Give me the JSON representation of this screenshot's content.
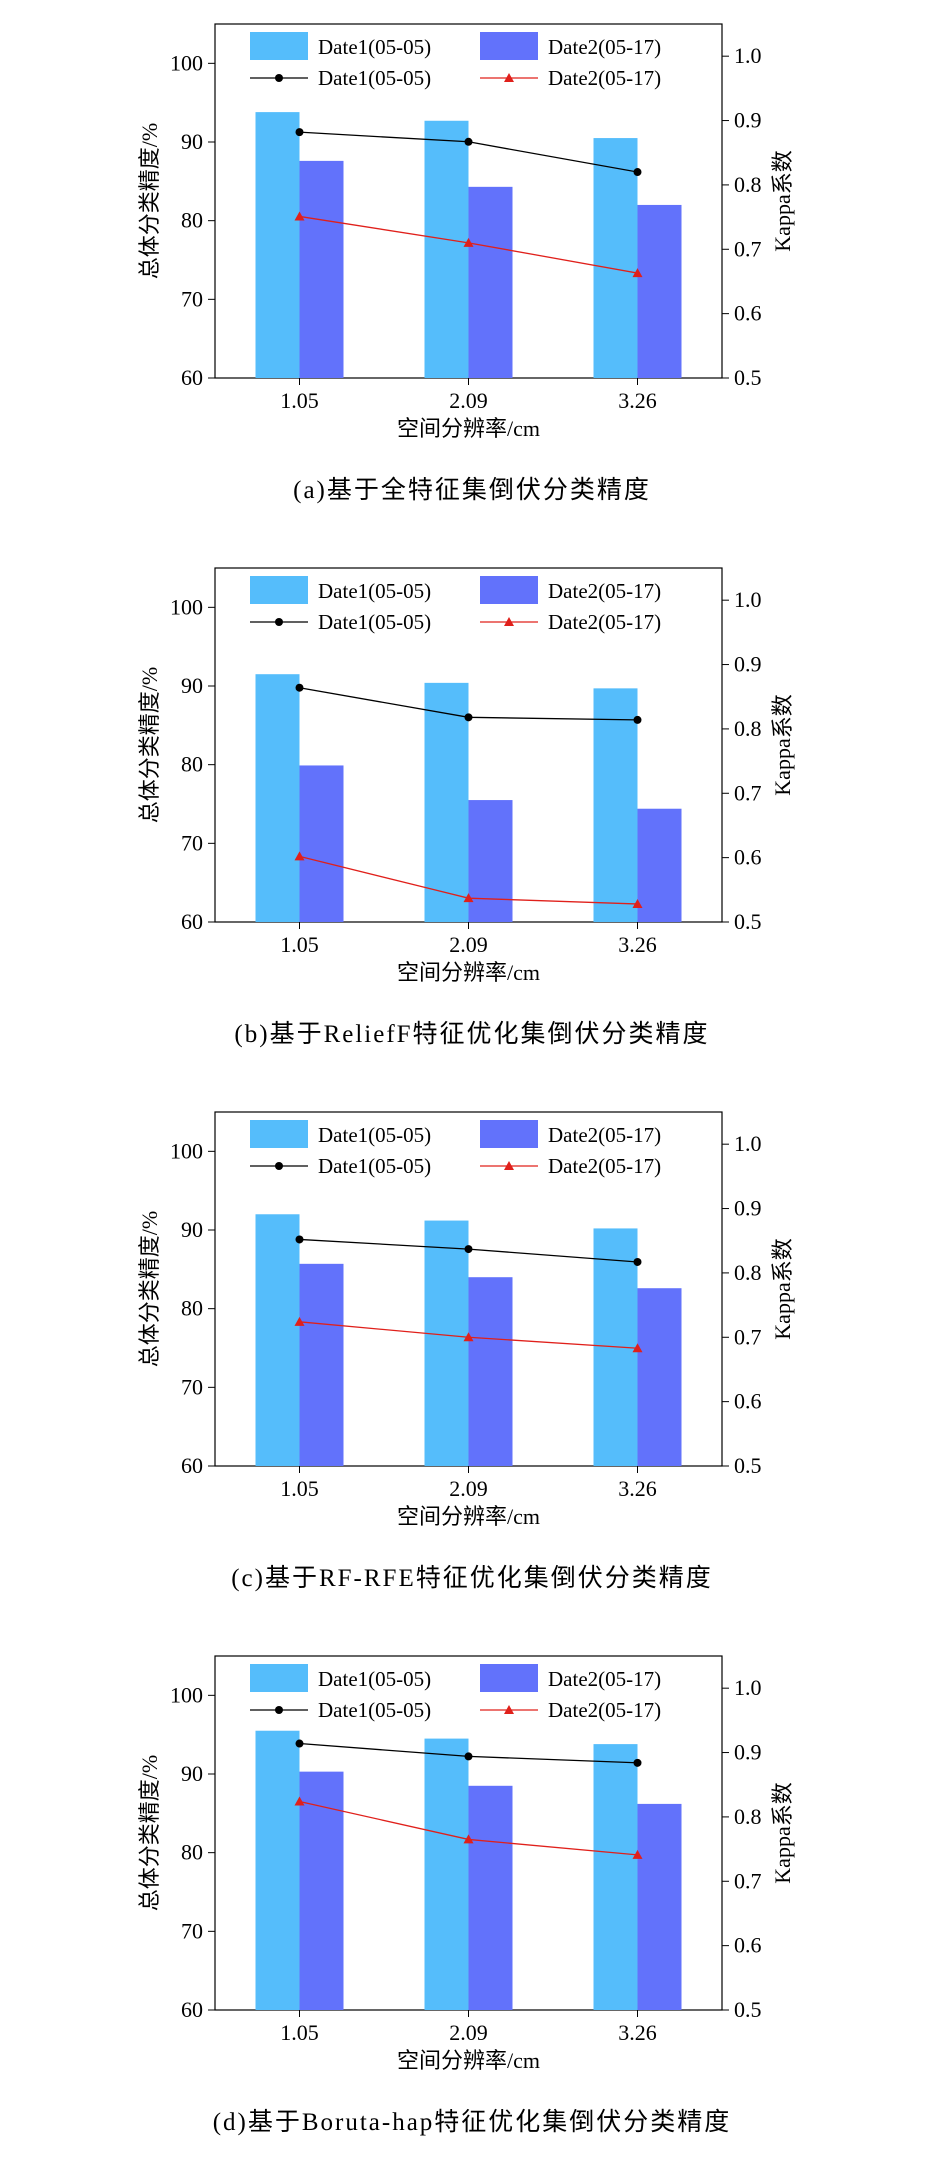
{
  "chart_data": [
    {
      "type": "bar",
      "caption": "(a)基于全特征集倒伏分类精度",
      "x_label": "空间分辨率/cm",
      "y_label": "总体分类精度/%",
      "y2_label": "Kappa系数",
      "categories": [
        "1.05",
        "2.09",
        "3.26"
      ],
      "ylim": [
        60,
        105
      ],
      "yticks": [
        60,
        70,
        80,
        90,
        100
      ],
      "y2lim": [
        0.5,
        1.05
      ],
      "y2ticks": [
        0.5,
        0.6,
        0.7,
        0.8,
        0.9,
        {
          "value": 1,
          "label": "1.0"
        }
      ],
      "series": [
        {
          "name": "Date1(05-05)",
          "type": "bar",
          "color": "#55bdfb",
          "values": [
            93.8,
            92.7,
            90.5
          ]
        },
        {
          "name": "Date2(05-17)",
          "type": "bar",
          "color": "#6272fb",
          "values": [
            87.6,
            84.3,
            82.0
          ]
        },
        {
          "name": "Date1(05-05)",
          "type": "line",
          "axis": "y2",
          "color": "#000000",
          "marker": "circle",
          "values": [
            0.882,
            0.867,
            0.82
          ]
        },
        {
          "name": "Date2(05-17)",
          "type": "line",
          "axis": "y2",
          "color": "#e0201b",
          "marker": "triangle",
          "values": [
            0.751,
            0.71,
            0.663
          ]
        }
      ]
    },
    {
      "type": "bar",
      "caption": "(b)基于ReliefF特征优化集倒伏分类精度",
      "x_label": "空间分辨率/cm",
      "y_label": "总体分类精度/%",
      "y2_label": "Kappa系数",
      "categories": [
        "1.05",
        "2.09",
        "3.26"
      ],
      "ylim": [
        60,
        105
      ],
      "yticks": [
        60,
        70,
        80,
        90,
        100
      ],
      "y2lim": [
        0.5,
        1.05
      ],
      "y2ticks": [
        0.5,
        0.6,
        0.7,
        0.8,
        0.9,
        {
          "value": 1,
          "label": "1.0"
        }
      ],
      "series": [
        {
          "name": "Date1(05-05)",
          "type": "bar",
          "color": "#55bdfb",
          "values": [
            91.5,
            90.4,
            89.7
          ]
        },
        {
          "name": "Date2(05-17)",
          "type": "bar",
          "color": "#6272fb",
          "values": [
            79.9,
            75.5,
            74.4
          ]
        },
        {
          "name": "Date1(05-05)",
          "type": "line",
          "axis": "y2",
          "color": "#000000",
          "marker": "circle",
          "values": [
            0.864,
            0.818,
            0.814
          ]
        },
        {
          "name": "Date2(05-17)",
          "type": "line",
          "axis": "y2",
          "color": "#e0201b",
          "marker": "triangle",
          "values": [
            0.602,
            0.537,
            0.528
          ]
        }
      ]
    },
    {
      "type": "bar",
      "caption": "(c)基于RF-RFE特征优化集倒伏分类精度",
      "x_label": "空间分辨率/cm",
      "y_label": "总体分类精度/%",
      "y2_label": "Kappa系数",
      "categories": [
        "1.05",
        "2.09",
        "3.26"
      ],
      "ylim": [
        60,
        105
      ],
      "yticks": [
        60,
        70,
        80,
        90,
        100
      ],
      "y2lim": [
        0.5,
        1.05
      ],
      "y2ticks": [
        0.5,
        0.6,
        0.7,
        0.8,
        0.9,
        {
          "value": 1,
          "label": "1.0"
        }
      ],
      "series": [
        {
          "name": "Date1(05-05)",
          "type": "bar",
          "color": "#55bdfb",
          "values": [
            92.0,
            91.2,
            90.2
          ]
        },
        {
          "name": "Date2(05-17)",
          "type": "bar",
          "color": "#6272fb",
          "values": [
            85.7,
            84.0,
            82.6
          ]
        },
        {
          "name": "Date1(05-05)",
          "type": "line",
          "axis": "y2",
          "color": "#000000",
          "marker": "circle",
          "values": [
            0.852,
            0.837,
            0.817
          ]
        },
        {
          "name": "Date2(05-17)",
          "type": "line",
          "axis": "y2",
          "color": "#e0201b",
          "marker": "triangle",
          "values": [
            0.724,
            0.7,
            0.683
          ]
        }
      ]
    },
    {
      "type": "bar",
      "caption": "(d)基于Boruta-hap特征优化集倒伏分类精度",
      "x_label": "空间分辨率/cm",
      "y_label": "总体分类精度/%",
      "y2_label": "Kappa系数",
      "categories": [
        "1.05",
        "2.09",
        "3.26"
      ],
      "ylim": [
        60,
        105
      ],
      "yticks": [
        60,
        70,
        80,
        90,
        100
      ],
      "y2lim": [
        0.5,
        1.05
      ],
      "y2ticks": [
        0.5,
        0.6,
        0.7,
        0.8,
        0.9,
        {
          "value": 1,
          "label": "1.0"
        }
      ],
      "series": [
        {
          "name": "Date1(05-05)",
          "type": "bar",
          "color": "#55bdfb",
          "values": [
            95.5,
            94.5,
            93.8
          ]
        },
        {
          "name": "Date2(05-17)",
          "type": "bar",
          "color": "#6272fb",
          "values": [
            90.3,
            88.5,
            86.2
          ]
        },
        {
          "name": "Date1(05-05)",
          "type": "line",
          "axis": "y2",
          "color": "#000000",
          "marker": "circle",
          "values": [
            0.914,
            0.894,
            0.884
          ]
        },
        {
          "name": "Date2(05-17)",
          "type": "line",
          "axis": "y2",
          "color": "#e0201b",
          "marker": "triangle",
          "values": [
            0.824,
            0.765,
            0.741
          ]
        }
      ]
    }
  ]
}
